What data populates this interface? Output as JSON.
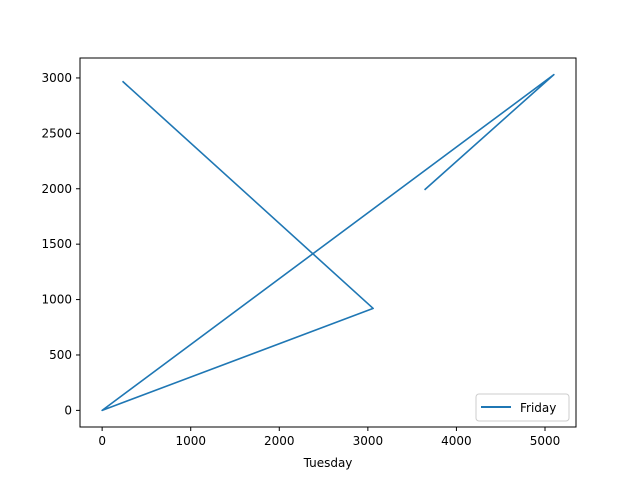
{
  "chart_data": {
    "type": "line",
    "title": "",
    "xlabel": "Tuesday",
    "ylabel": "",
    "xlim": [
      -250,
      5350
    ],
    "ylim": [
      -150,
      3180
    ],
    "xticks": [
      0,
      1000,
      2000,
      3000,
      4000,
      5000
    ],
    "yticks": [
      0,
      500,
      1000,
      1500,
      2000,
      2500,
      3000
    ],
    "grid": false,
    "legend_position": "lower-right",
    "series": [
      {
        "name": "Friday",
        "color": "#1f77b4",
        "x": [
          3640,
          5100,
          0,
          3060,
          230
        ],
        "y": [
          1990,
          3030,
          0,
          920,
          2970
        ]
      }
    ]
  }
}
